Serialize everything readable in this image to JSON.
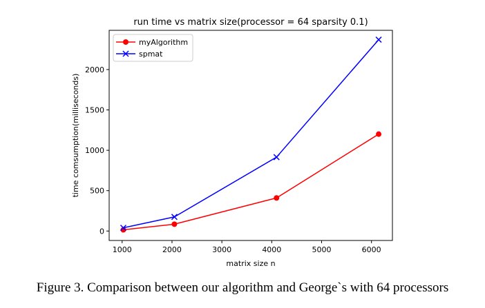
{
  "chart_data": {
    "type": "line",
    "title": "run time vs matrix size(processor = 64 sparsity 0.1)",
    "xlabel": "matrix size n",
    "ylabel": "time comsumption(milliseconds)",
    "x": [
      1024,
      2048,
      4096,
      6144
    ],
    "xlim": [
      740,
      6420
    ],
    "ylim": [
      -117,
      2486
    ],
    "xticks": [
      1000,
      2000,
      3000,
      4000,
      5000,
      6000
    ],
    "yticks": [
      0,
      500,
      1000,
      1500,
      2000
    ],
    "grid": false,
    "legend_position": "upper-left",
    "series": [
      {
        "name": "myAlgorithm",
        "color": "#ff0000",
        "marker": "circle",
        "values": [
          15,
          85,
          410,
          1200
        ]
      },
      {
        "name": "spmat",
        "color": "#0000ff",
        "marker": "x",
        "values": [
          40,
          175,
          915,
          2370
        ]
      }
    ]
  },
  "caption": "Figure 3. Comparison between our algorithm and George`s with 64 processors"
}
